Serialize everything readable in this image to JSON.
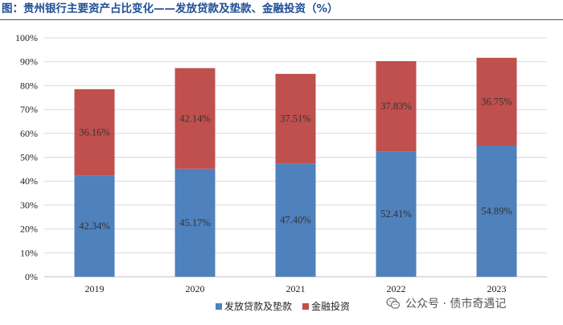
{
  "title": "图：贵州银行主要资产占比变化——发放贷款及垫款、金融投资（%）",
  "watermark": "公众号 · 债市奇遇记",
  "colors": {
    "loans": "#4f81bd",
    "investments": "#c0504d",
    "title": "#1f4e96"
  },
  "chart_data": {
    "type": "bar",
    "stacked": true,
    "categories": [
      "2019",
      "2020",
      "2021",
      "2022",
      "2023"
    ],
    "series": [
      {
        "name": "发放贷款及垫款",
        "values": [
          42.34,
          45.17,
          47.4,
          52.41,
          54.89
        ],
        "labels": [
          "42.34%",
          "45.17%",
          "47.40%",
          "52.41%",
          "54.89%"
        ],
        "color": "#4f81bd"
      },
      {
        "name": "金融投资",
        "values": [
          36.16,
          42.14,
          37.51,
          37.83,
          36.75
        ],
        "labels": [
          "36.16%",
          "42.14%",
          "37.51%",
          "37.83%",
          "36.75%"
        ],
        "color": "#c0504d"
      }
    ],
    "ylim": [
      0,
      100
    ],
    "yticks": [
      "0%",
      "10%",
      "20%",
      "30%",
      "40%",
      "50%",
      "60%",
      "70%",
      "80%",
      "90%",
      "100%"
    ],
    "grid": true,
    "legend": "bottom"
  }
}
